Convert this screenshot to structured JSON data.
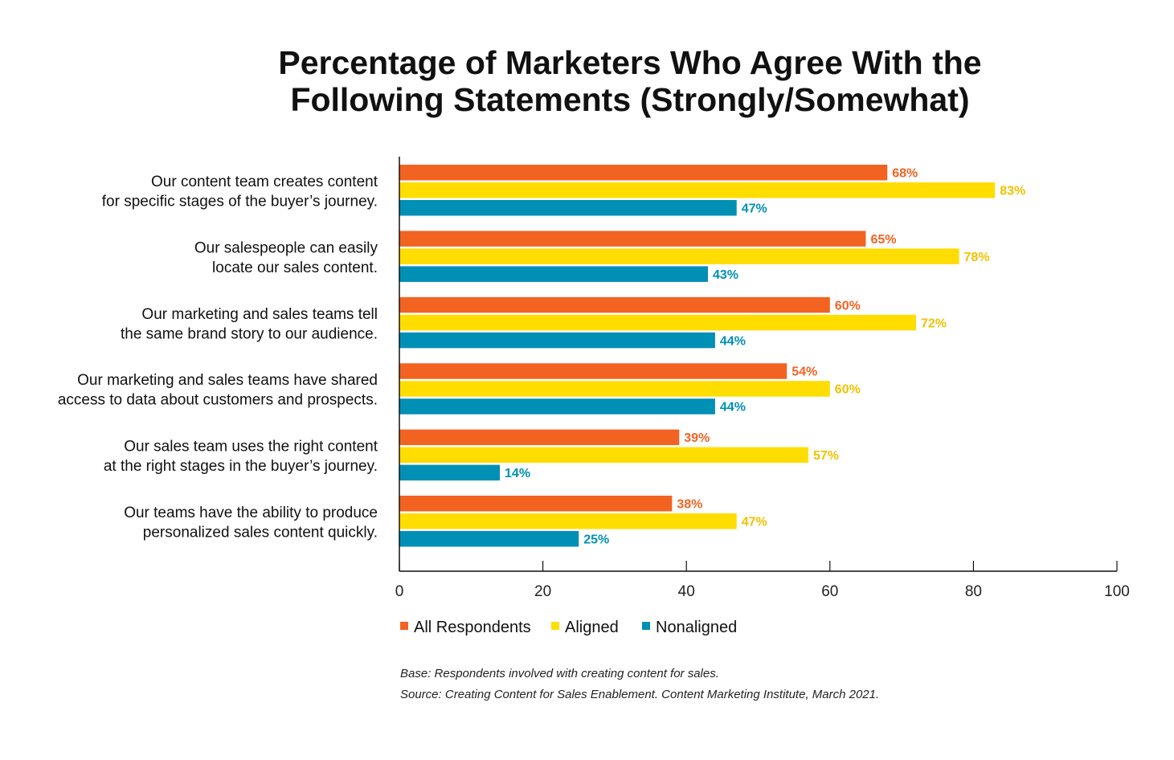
{
  "chart_data": {
    "type": "bar",
    "orientation": "horizontal",
    "title": [
      "Percentage of Marketers Who Agree With the",
      "Following Statements (Strongly/Somewhat)"
    ],
    "categories": [
      [
        "Our content team creates content",
        "for specific stages of the buyer’s journey."
      ],
      [
        "Our salespeople can easily",
        "locate our sales content."
      ],
      [
        "Our marketing and sales teams tell",
        "the same brand story to our audience."
      ],
      [
        "Our marketing and sales teams have shared",
        "access to data about customers and prospects."
      ],
      [
        "Our sales team uses the right content",
        "at the right stages in the buyer’s journey."
      ],
      [
        "Our teams have the ability to produce",
        "personalized sales content quickly."
      ]
    ],
    "series": [
      {
        "name": "All Respondents",
        "color": "#F26322",
        "label_color": "#F26322",
        "values": [
          68,
          65,
          60,
          54,
          39,
          38
        ]
      },
      {
        "name": "Aligned",
        "color": "#FFDD00",
        "label_color": "#F2C200",
        "values": [
          83,
          78,
          72,
          60,
          57,
          47
        ]
      },
      {
        "name": "Nonaligned",
        "color": "#0090B5",
        "label_color": "#0090B5",
        "values": [
          47,
          43,
          44,
          44,
          14,
          25
        ]
      }
    ],
    "value_suffix": "%",
    "xlim": [
      0,
      100
    ],
    "xticks": [
      0,
      20,
      40,
      60,
      80,
      100
    ],
    "grid": false,
    "legend_position": "bottom-left",
    "footnotes": [
      "Base: Respondents involved with creating content for sales.",
      "Source: Creating Content for Sales Enablement. Content Marketing Institute, March 2021."
    ]
  }
}
